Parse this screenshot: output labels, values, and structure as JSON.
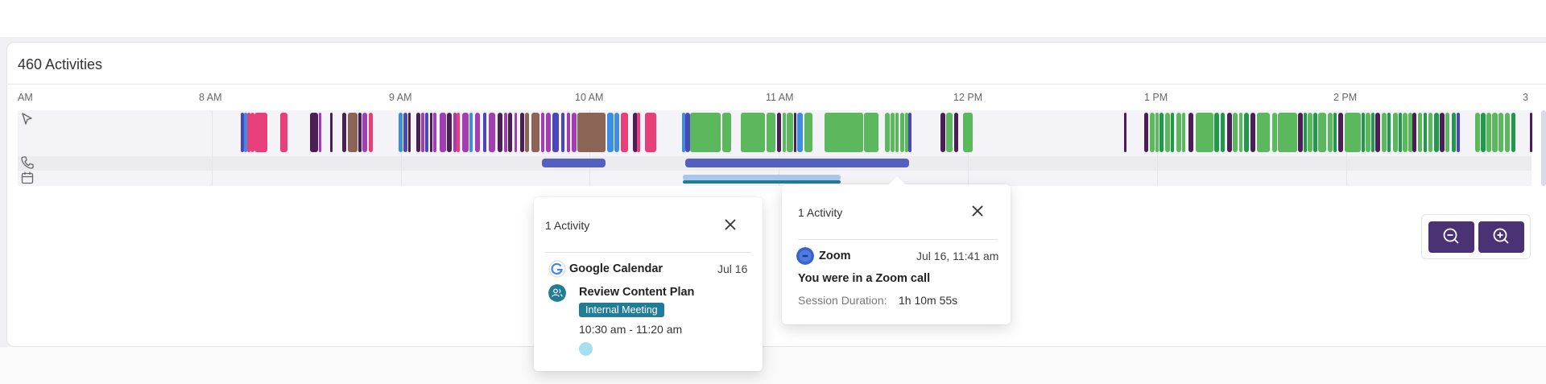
{
  "header": {
    "title": "460 Activities"
  },
  "timeline": {
    "ticks": [
      "AM",
      "8 AM",
      "9 AM",
      "10 AM",
      "11 AM",
      "12 PM",
      "1 PM",
      "2 PM",
      "3"
    ],
    "rows": [
      {
        "name": "computer",
        "icon": "cursor-icon"
      },
      {
        "name": "calls",
        "icon": "phone-icon"
      },
      {
        "name": "calendar",
        "icon": "calendar-icon"
      }
    ],
    "colors": {
      "green": "#5cb85c",
      "dark_green": "#1e9a4a",
      "purple": "#4a1f55",
      "magenta": "#a23db4",
      "pink": "#e83e79",
      "blue": "#3d8ee0",
      "indigo": "#4a47b8",
      "brown": "#8b6456",
      "call": "#5360bd",
      "cal_light": "#a9c6ee",
      "cal_teal": "#217d97"
    }
  },
  "popup_calendar": {
    "title": "1 Activity",
    "source": "Google Calendar",
    "source_icon": "google-calendar-icon",
    "date": "Jul 16",
    "event_icon": "people-icon",
    "event_title": "Review Content Plan",
    "badge": "Internal Meeting",
    "time": "10:30 am - 11:20 am",
    "dot_color": "#a6dff0"
  },
  "popup_zoom": {
    "title": "1 Activity",
    "source": "Zoom",
    "source_icon": "zoom-icon",
    "datetime": "Jul 16, 11:41 am",
    "headline": "You were in a Zoom call",
    "duration_label": "Session Duration:",
    "duration_value": "1h 10m 55s"
  },
  "zoom_controls": {
    "zoom_out_icon": "zoom-out-icon",
    "zoom_in_icon": "zoom-in-icon"
  }
}
